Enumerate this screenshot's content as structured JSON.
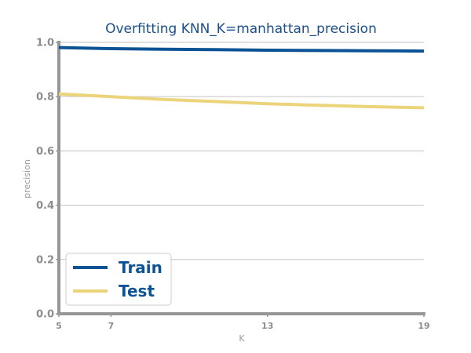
{
  "chart_data": {
    "type": "line",
    "title": "Overfitting KNN_K=manhattan_precision",
    "xlabel": "K",
    "ylabel": "precision",
    "x": [
      5,
      7,
      9,
      11,
      13,
      15,
      17,
      19
    ],
    "x_ticks": [
      "5",
      "7",
      "13",
      "19"
    ],
    "y_ticks": [
      "0.0",
      "0.2",
      "0.4",
      "0.6",
      "0.8",
      "1.0"
    ],
    "xlim": [
      5,
      19
    ],
    "ylim": [
      0,
      1
    ],
    "grid": "horizontal",
    "legend_position": "bottom-left",
    "series": [
      {
        "name": "Train",
        "color": "#0b5394",
        "values": [
          0.981,
          0.977,
          0.975,
          0.973,
          0.971,
          0.97,
          0.969,
          0.968
        ]
      },
      {
        "name": "Test",
        "color": "#ecd47a",
        "values": [
          0.81,
          0.8,
          0.79,
          0.782,
          0.774,
          0.768,
          0.763,
          0.759
        ]
      }
    ]
  }
}
